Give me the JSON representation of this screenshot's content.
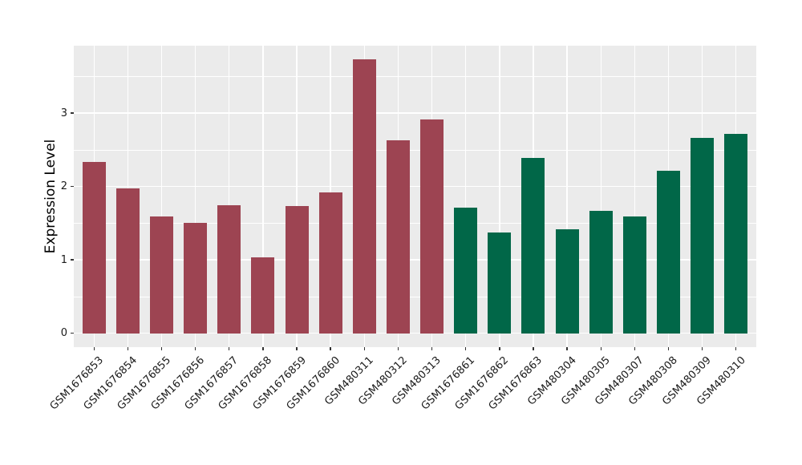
{
  "chart_data": {
    "type": "bar",
    "title": "",
    "xlabel": "",
    "ylabel": "Expression Level",
    "categories": [
      "GSM1676853",
      "GSM1676854",
      "GSM1676855",
      "GSM1676856",
      "GSM1676857",
      "GSM1676858",
      "GSM1676859",
      "GSM1676860",
      "GSM480311",
      "GSM480312",
      "GSM480313",
      "GSM1676861",
      "GSM1676862",
      "GSM1676863",
      "GSM480304",
      "GSM480305",
      "GSM480307",
      "GSM480308",
      "GSM480309",
      "GSM480310"
    ],
    "values": [
      2.33,
      1.97,
      1.59,
      1.5,
      1.74,
      1.03,
      1.73,
      1.92,
      3.73,
      2.63,
      2.91,
      1.71,
      1.37,
      2.39,
      1.42,
      1.67,
      1.59,
      2.22,
      2.66,
      2.72
    ],
    "bar_colors": [
      "#9D4452",
      "#9D4452",
      "#9D4452",
      "#9D4452",
      "#9D4452",
      "#9D4452",
      "#9D4452",
      "#9D4452",
      "#9D4452",
      "#9D4452",
      "#9D4452",
      "#016748",
      "#016748",
      "#016748",
      "#016748",
      "#016748",
      "#016748",
      "#016748",
      "#016748",
      "#016748"
    ],
    "group_colors": {
      "group_1": "#9D4452",
      "group_2": "#016748"
    },
    "yticks": [
      0,
      1,
      2,
      3
    ],
    "yticks_minor": [
      0.5,
      1.5,
      2.5,
      3.5
    ],
    "ylim": [
      -0.19,
      3.92
    ],
    "grid": true,
    "legend_position": "none",
    "panel_background": "#EBEBEB",
    "gridline_color": "#FFFFFF",
    "axis_text_color": "#1A1A1A"
  }
}
